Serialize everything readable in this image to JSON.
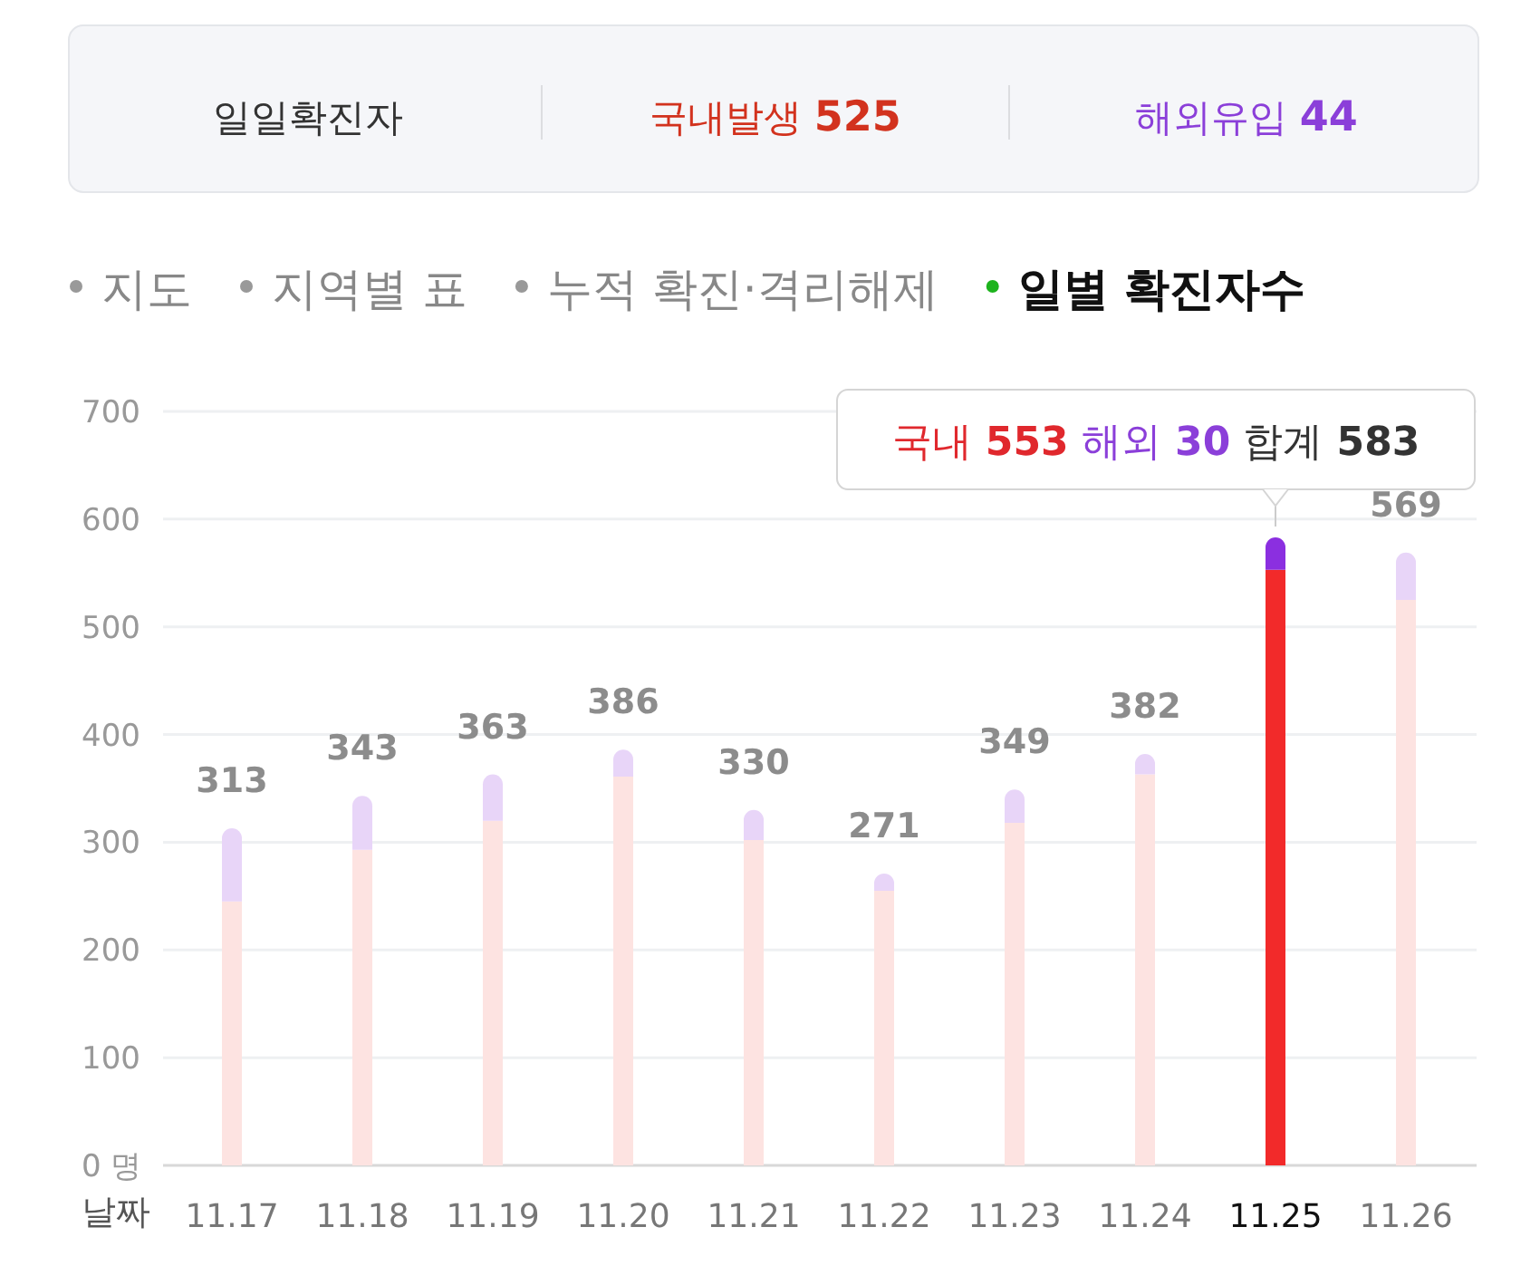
{
  "chart_data": {
    "type": "bar",
    "stacked": true,
    "annotations": [
      "일일확진자",
      "국내발생 525",
      "해외유입 44",
      "지도",
      "지역별 표",
      "누적 확진·격리해제",
      "일별 확진자수",
      {
        "text": "국내 553 해외 30 합계 583",
        "x": "11.25",
        "y": 583
      }
    ],
    "xlabel": "날짜",
    "categories": [
      "11.17",
      "11.18",
      "11.19",
      "11.20",
      "11.21",
      "11.22",
      "11.23",
      "11.24",
      "11.25",
      "11.26"
    ],
    "series": [
      {
        "colors": [
          "#fde3e1",
          "#fde3e1",
          "#fde3e1",
          "#fde3e1",
          "#fde3e1",
          "#fde3e1",
          "#fde3e1",
          "#fde3e1",
          "#f22a2a",
          "#fde3e1"
        ],
        "values": [
          245,
          293,
          320,
          361,
          302,
          255,
          318,
          363,
          553,
          525
        ]
      },
      {
        "colors": [
          "#e8d5f8",
          "#e8d5f8",
          "#e8d5f8",
          "#e8d5f8",
          "#e8d5f8",
          "#e8d5f8",
          "#e8d5f8",
          "#e8d5f8",
          "#8b2fe0",
          "#e8d5f8"
        ],
        "values": [
          68,
          50,
          43,
          25,
          28,
          16,
          31,
          19,
          30,
          44
        ]
      }
    ],
    "totals": [
      "313",
      "343",
      "363",
      "386",
      "330",
      "271",
      "349",
      "382",
      null,
      "569"
    ],
    "ylim": [
      0,
      700
    ],
    "yticks": [
      {
        "value": 0,
        "label": "0 명"
      },
      100,
      200,
      300,
      400,
      500,
      600,
      700
    ],
    "grid": "y"
  }
}
